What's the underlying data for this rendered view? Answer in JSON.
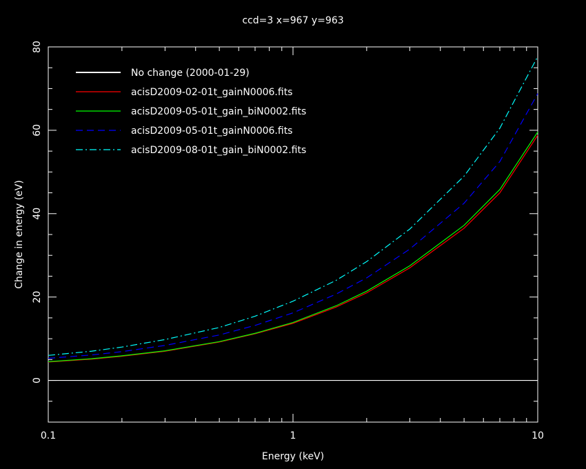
{
  "chart_data": {
    "type": "line",
    "title": "ccd=3 x=967 y=963",
    "xlabel": "Energy (keV)",
    "ylabel": "Change in energy (eV)",
    "xscale": "log",
    "xlim": [
      0.1,
      10
    ],
    "ylim": [
      -10,
      80
    ],
    "grid": false,
    "legend_position": "top-left",
    "x_tick_labels": [
      "0.1",
      "1",
      "10"
    ],
    "y_tick_labels": [
      "0",
      "20",
      "40",
      "60",
      "80"
    ],
    "x": [
      0.1,
      0.15,
      0.2,
      0.3,
      0.5,
      0.7,
      1,
      1.5,
      2,
      3,
      5,
      7,
      10
    ],
    "series": [
      {
        "name": "No change (2000-01-29)",
        "color": "#ffffff",
        "dash": "solid",
        "values": [
          0,
          0,
          0,
          0,
          0,
          0,
          0,
          0,
          0,
          0,
          0,
          0,
          0
        ]
      },
      {
        "name": "acisD2009-02-01t_gainN0006.fits",
        "color": "#ff0000",
        "dash": "solid",
        "values": [
          4.4,
          5.1,
          5.8,
          7.0,
          9.2,
          11.2,
          13.7,
          17.6,
          21.0,
          27.0,
          36.5,
          45.0,
          58.8
        ]
      },
      {
        "name": "acisD2009-05-01t_gain_biN0002.fits",
        "color": "#00ff00",
        "dash": "solid",
        "values": [
          4.5,
          5.2,
          5.9,
          7.1,
          9.3,
          11.3,
          13.9,
          17.9,
          21.4,
          27.5,
          37.2,
          45.8,
          59.6
        ]
      },
      {
        "name": "acisD2009-05-01t_gainN0006.fits",
        "color": "#0000ff",
        "dash": "dashed",
        "values": [
          5.3,
          6.1,
          6.9,
          8.4,
          10.9,
          13.2,
          16.2,
          20.7,
          24.6,
          31.5,
          42.5,
          52.5,
          68.8
        ]
      },
      {
        "name": "acisD2009-08-01t_gain_biN0002.fits",
        "color": "#00ffff",
        "dash": "dashdot",
        "values": [
          6.0,
          7.0,
          8.0,
          9.8,
          12.7,
          15.4,
          19.0,
          24.0,
          28.5,
          36.3,
          49.0,
          60.5,
          77.7
        ]
      }
    ]
  }
}
